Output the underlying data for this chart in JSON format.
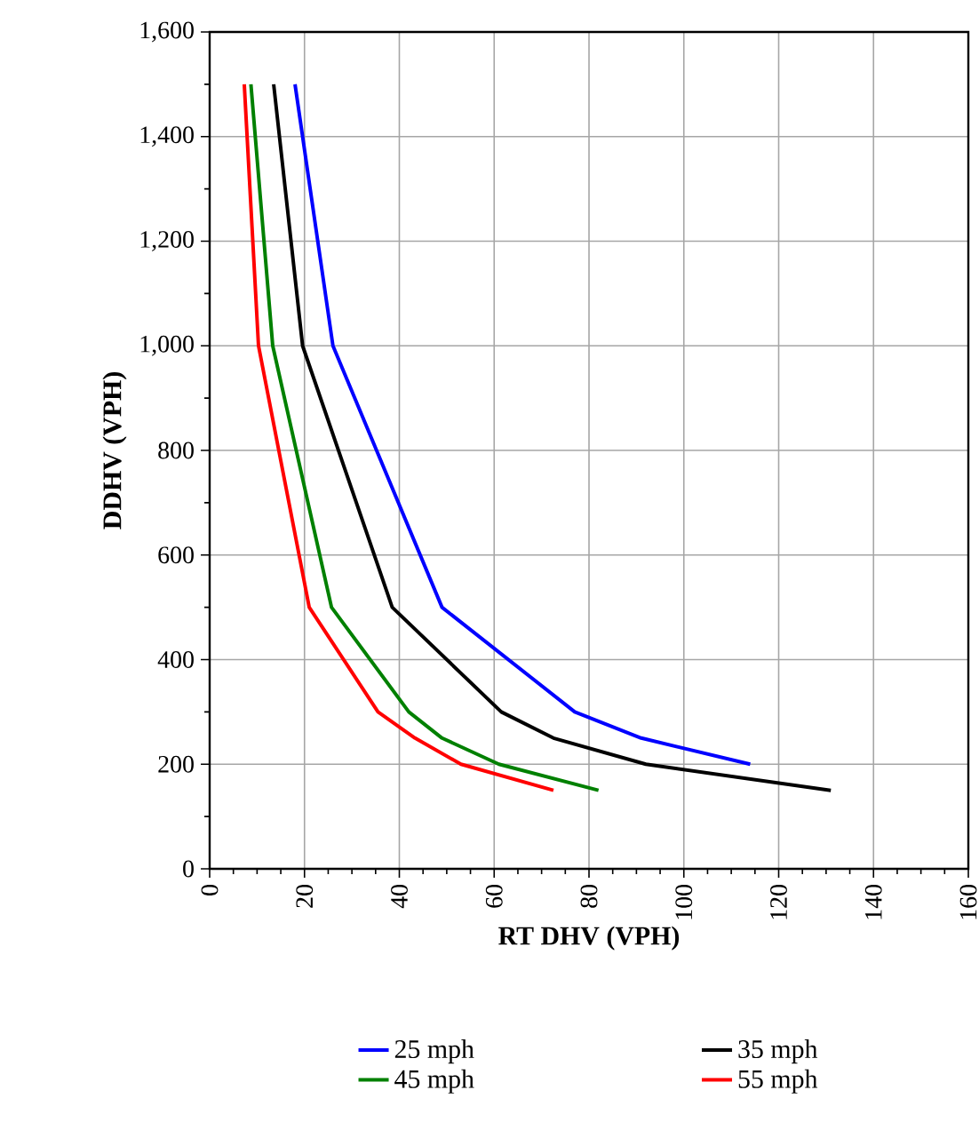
{
  "chart_data": {
    "type": "line",
    "xlabel": "RT DHV (VPH)",
    "ylabel": "DDHV (VPH)",
    "xlim": [
      0,
      160
    ],
    "xticks": [
      0,
      20,
      40,
      60,
      80,
      100,
      120,
      140,
      160
    ],
    "ylim": [
      0,
      1600
    ],
    "yticks": [
      0,
      {
        "value": 200,
        "label": "200"
      },
      {
        "value": 400,
        "label": "400"
      },
      {
        "value": 600,
        "label": "600"
      },
      {
        "value": 800,
        "label": "800"
      },
      {
        "value": 1000,
        "label": "1,000"
      },
      {
        "value": 1200,
        "label": "1,200"
      },
      {
        "value": 1400,
        "label": "1,400"
      },
      {
        "value": 1600,
        "label": "1,600"
      }
    ],
    "grid": true,
    "legend": "bottom",
    "marker": "none",
    "line_style": "solid",
    "series": [
      {
        "name": "25 mph",
        "color": "#0000ff",
        "x": [
          18,
          26,
          49,
          77,
          91,
          114
        ],
        "values": [
          1500,
          1000,
          500,
          300,
          250,
          200
        ]
      },
      {
        "name": "35 mph",
        "color": "#000000",
        "x": [
          13.5,
          19.6,
          38.5,
          61.5,
          72.5,
          92,
          131
        ],
        "values": [
          1500,
          1000,
          500,
          300,
          250,
          200,
          150
        ]
      },
      {
        "name": "45 mph",
        "color": "#008000",
        "x": [
          8.7,
          13.3,
          25.7,
          42,
          49,
          61,
          82
        ],
        "values": [
          1500,
          1000,
          500,
          300,
          250,
          200,
          150
        ]
      },
      {
        "name": "55 mph",
        "color": "#ff0000",
        "x": [
          7.3,
          10.3,
          21,
          35.5,
          43.3,
          53,
          72.5
        ],
        "values": [
          1500,
          1000,
          500,
          300,
          250,
          200,
          150
        ]
      }
    ]
  }
}
